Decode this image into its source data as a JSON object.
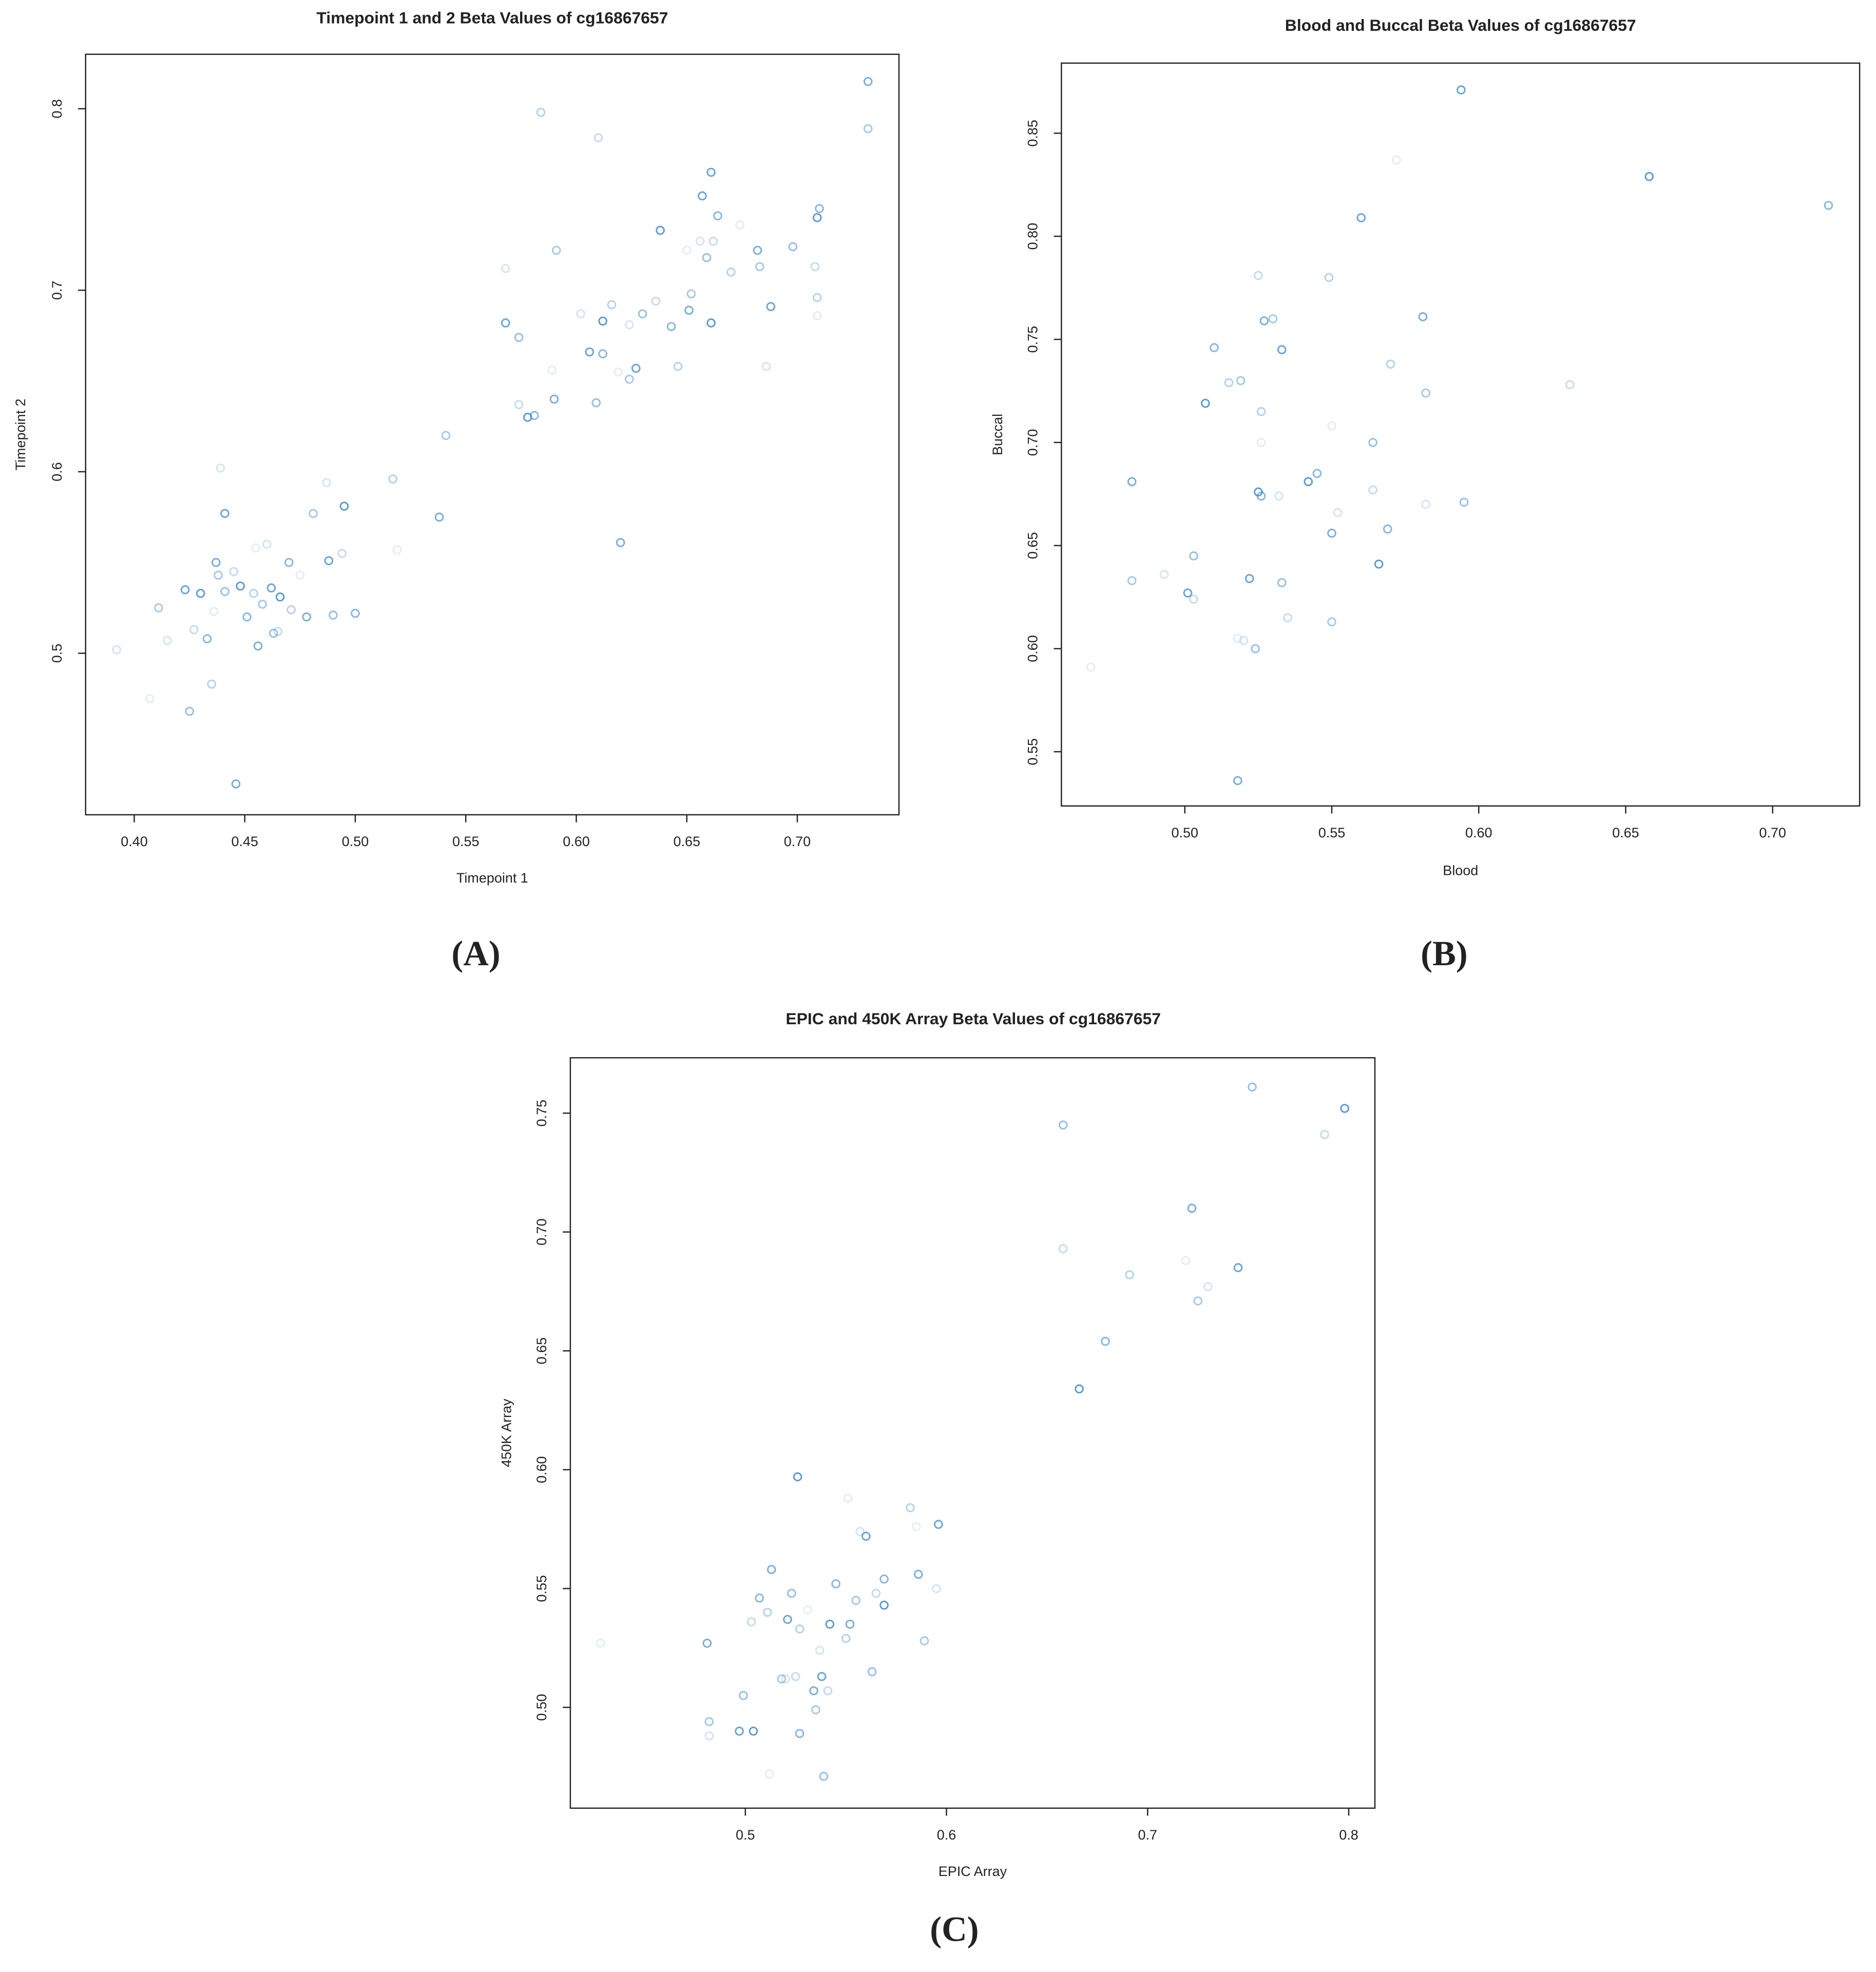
{
  "chart_data": [
    {
      "type": "scatter",
      "title": "Timepoint 1 and 2 Beta Values of cg16867657",
      "x_label": "Timepoint 1",
      "y_label": "Timepoint 2",
      "panel_label": "(A)",
      "color": "#3a86c4",
      "x": [
        0.407,
        0.446,
        0.411,
        0.415,
        0.423,
        0.425,
        0.427,
        0.43,
        0.433,
        0.435,
        0.436,
        0.437,
        0.438,
        0.439,
        0.441,
        0.441,
        0.445,
        0.448,
        0.451,
        0.454,
        0.455,
        0.456,
        0.458,
        0.46,
        0.462,
        0.463,
        0.465,
        0.466,
        0.47,
        0.471,
        0.475,
        0.478,
        0.481,
        0.487,
        0.488,
        0.49,
        0.494,
        0.495,
        0.5,
        0.517,
        0.519,
        0.538,
        0.541,
        0.568,
        0.568,
        0.574,
        0.574,
        0.578,
        0.581,
        0.584,
        0.589,
        0.59,
        0.591,
        0.602,
        0.606,
        0.609,
        0.61,
        0.612,
        0.612,
        0.616,
        0.619,
        0.62,
        0.624,
        0.624,
        0.627,
        0.63,
        0.636,
        0.638,
        0.643,
        0.646,
        0.65,
        0.651,
        0.652,
        0.656,
        0.657,
        0.659,
        0.662,
        0.661,
        0.664,
        0.67,
        0.674,
        0.682,
        0.683,
        0.686,
        0.688,
        0.698,
        0.708,
        0.709,
        0.71,
        0.709,
        0.709,
        0.732,
        0.732,
        0.392,
        0.661
      ],
      "y": [
        0.475,
        0.428,
        0.525,
        0.507,
        0.535,
        0.468,
        0.513,
        0.533,
        0.508,
        0.483,
        0.523,
        0.55,
        0.543,
        0.602,
        0.577,
        0.534,
        0.545,
        0.537,
        0.52,
        0.533,
        0.558,
        0.504,
        0.527,
        0.56,
        0.536,
        0.511,
        0.512,
        0.531,
        0.55,
        0.524,
        0.543,
        0.52,
        0.577,
        0.594,
        0.551,
        0.521,
        0.555,
        0.581,
        0.522,
        0.596,
        0.557,
        0.575,
        0.62,
        0.712,
        0.682,
        0.674,
        0.637,
        0.63,
        0.631,
        0.798,
        0.656,
        0.64,
        0.722,
        0.687,
        0.666,
        0.638,
        0.784,
        0.683,
        0.665,
        0.692,
        0.655,
        0.561,
        0.651,
        0.681,
        0.657,
        0.687,
        0.694,
        0.733,
        0.68,
        0.658,
        0.722,
        0.689,
        0.698,
        0.727,
        0.752,
        0.718,
        0.727,
        0.682,
        0.741,
        0.71,
        0.736,
        0.722,
        0.713,
        0.658,
        0.691,
        0.724,
        0.713,
        0.74,
        0.745,
        0.696,
        0.686,
        0.815,
        0.789,
        0.502,
        0.765
      ],
      "xlim": [
        0.378,
        0.746
      ],
      "ylim": [
        0.411,
        0.83
      ],
      "xticks": [
        {
          "value": 0.4,
          "label": "0.40"
        },
        0.45,
        {
          "value": 0.5,
          "label": "0.50"
        },
        0.55,
        {
          "value": 0.6,
          "label": "0.60"
        },
        0.65,
        {
          "value": 0.7,
          "label": "0.70"
        }
      ],
      "yticks": [
        0.5,
        0.6,
        0.7,
        0.8
      ]
    },
    {
      "type": "scatter",
      "title": "Blood and Buccal Beta Values of cg16867657",
      "x_label": "Blood",
      "y_label": "Buccal",
      "panel_label": "(B)",
      "color": "#3a86c4",
      "x": [
        0.468,
        0.482,
        0.482,
        0.493,
        0.501,
        0.503,
        0.503,
        0.507,
        0.51,
        0.515,
        0.518,
        0.518,
        0.519,
        0.52,
        0.522,
        0.524,
        0.525,
        0.525,
        0.526,
        0.526,
        0.526,
        0.527,
        0.53,
        0.532,
        0.533,
        0.533,
        0.535,
        0.542,
        0.545,
        0.549,
        0.55,
        0.55,
        0.55,
        0.552,
        0.56,
        0.564,
        0.564,
        0.566,
        0.569,
        0.57,
        0.572,
        0.581,
        0.582,
        0.582,
        0.594,
        0.595,
        0.631,
        0.658,
        0.719
      ],
      "y": [
        0.591,
        0.681,
        0.633,
        0.636,
        0.627,
        0.645,
        0.624,
        0.719,
        0.746,
        0.729,
        0.605,
        0.536,
        0.73,
        0.604,
        0.634,
        0.6,
        0.781,
        0.676,
        0.674,
        0.715,
        0.7,
        0.759,
        0.76,
        0.674,
        0.745,
        0.632,
        0.615,
        0.681,
        0.685,
        0.78,
        0.708,
        0.656,
        0.613,
        0.666,
        0.809,
        0.7,
        0.677,
        0.641,
        0.658,
        0.738,
        0.837,
        0.761,
        0.724,
        0.67,
        0.871,
        0.671,
        0.728,
        0.829,
        0.815
      ],
      "xlim": [
        0.458,
        0.7296
      ],
      "ylim": [
        0.5237,
        0.884
      ],
      "xticks": [
        {
          "value": 0.5,
          "label": "0.50"
        },
        0.55,
        {
          "value": 0.6,
          "label": "0.60"
        },
        0.65,
        {
          "value": 0.7,
          "label": "0.70"
        }
      ],
      "yticks": [
        0.55,
        {
          "value": 0.6,
          "label": "0.60"
        },
        0.65,
        {
          "value": 0.7,
          "label": "0.70"
        },
        0.75,
        {
          "value": 0.8,
          "label": "0.80"
        },
        0.85
      ]
    },
    {
      "type": "scatter",
      "title": "EPIC and 450K Array Beta Values of cg16867657",
      "x_label": "EPIC Array",
      "y_label": "450K Array",
      "panel_label": "(C)",
      "color": "#3a86c4",
      "x": [
        0.428,
        0.481,
        0.482,
        0.482,
        0.497,
        0.499,
        0.503,
        0.504,
        0.507,
        0.511,
        0.512,
        0.513,
        0.518,
        0.52,
        0.521,
        0.523,
        0.525,
        0.526,
        0.527,
        0.527,
        0.531,
        0.534,
        0.535,
        0.537,
        0.538,
        0.539,
        0.541,
        0.542,
        0.545,
        0.55,
        0.551,
        0.552,
        0.555,
        0.557,
        0.56,
        0.563,
        0.565,
        0.569,
        0.569,
        0.582,
        0.585,
        0.586,
        0.589,
        0.595,
        0.596,
        0.658,
        0.658,
        0.666,
        0.679,
        0.691,
        0.719,
        0.722,
        0.725,
        0.73,
        0.745,
        0.752,
        0.788,
        0.798
      ],
      "y": [
        0.527,
        0.527,
        0.494,
        0.488,
        0.49,
        0.505,
        0.536,
        0.49,
        0.546,
        0.54,
        0.472,
        0.558,
        0.512,
        0.512,
        0.537,
        0.548,
        0.513,
        0.597,
        0.489,
        0.533,
        0.541,
        0.507,
        0.499,
        0.524,
        0.513,
        0.471,
        0.507,
        0.535,
        0.552,
        0.529,
        0.588,
        0.535,
        0.545,
        0.574,
        0.572,
        0.515,
        0.548,
        0.543,
        0.554,
        0.584,
        0.576,
        0.556,
        0.528,
        0.55,
        0.577,
        0.745,
        0.693,
        0.634,
        0.654,
        0.682,
        0.688,
        0.71,
        0.671,
        0.677,
        0.685,
        0.761,
        0.741,
        0.752
      ],
      "xlim": [
        0.413,
        0.813
      ],
      "ylim": [
        0.4576,
        0.7733
      ],
      "xticks": [
        0.5,
        0.6,
        0.7,
        0.8
      ],
      "yticks": [
        {
          "value": 0.5,
          "label": "0.50"
        },
        0.55,
        {
          "value": 0.6,
          "label": "0.60"
        },
        0.65,
        {
          "value": 0.7,
          "label": "0.70"
        },
        0.75
      ]
    }
  ]
}
